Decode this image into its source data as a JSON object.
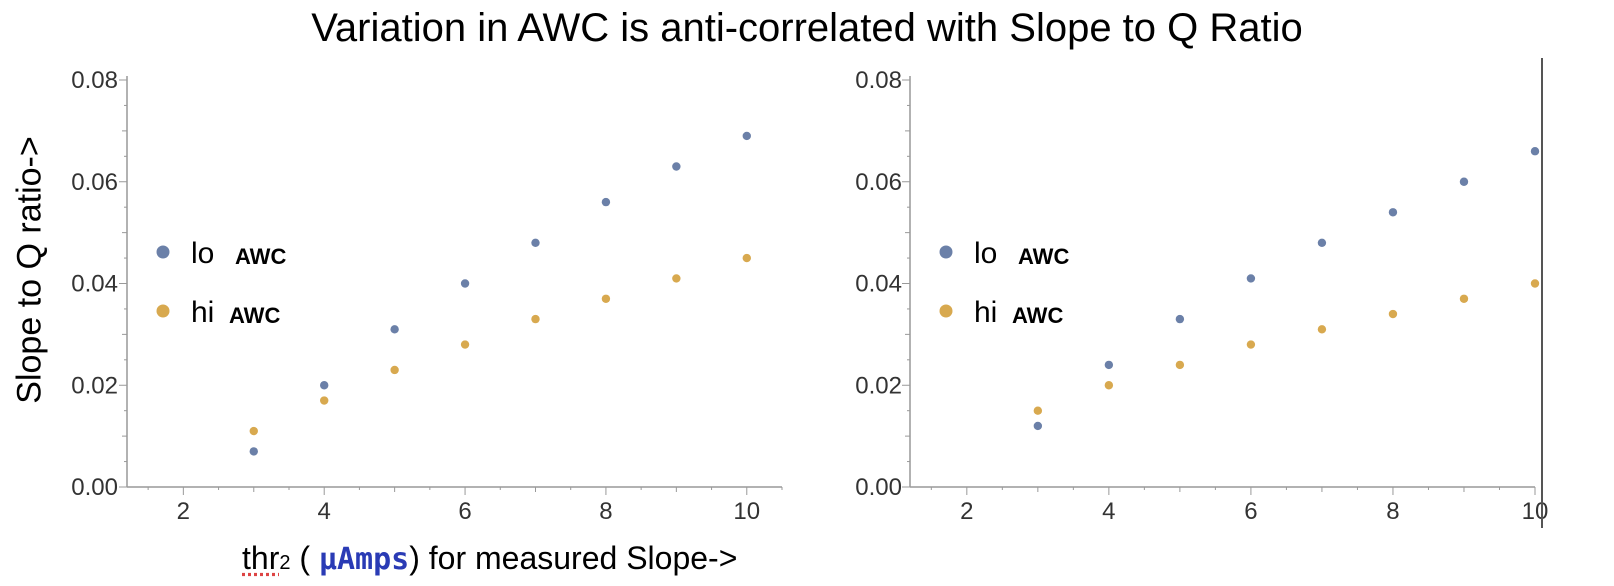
{
  "title": "Variation in AWC is anti-correlated with Slope to Q Ratio",
  "ylabel": "Slope to Q ratio->",
  "xlabel": {
    "prefix": "thr",
    "subscript": "2",
    "open": " ( ",
    "unit": "μAmps",
    "suffix": ") for measured Slope->"
  },
  "colors": {
    "lo": "#6b80a8",
    "hi": "#d8a94f",
    "axis": "#999999"
  },
  "chart_data": [
    {
      "type": "scatter",
      "name": "left-panel",
      "xlim": [
        1.2,
        10.5
      ],
      "ylim": [
        0,
        0.08
      ],
      "x_ticks": [
        2,
        4,
        6,
        8,
        10
      ],
      "x_tick_labels": [
        "2",
        "4",
        "6",
        "8",
        "10"
      ],
      "y_ticks": [
        0,
        0.02,
        0.04,
        0.06,
        0.08
      ],
      "y_tick_labels": [
        "0.00",
        "0.02",
        "0.04",
        "0.06",
        "0.08"
      ],
      "legend": [
        {
          "label": "lo",
          "sub": "AWC",
          "series": "lo"
        },
        {
          "label": "hi",
          "sub": "AWC",
          "series": "hi"
        }
      ],
      "series": [
        {
          "name": "lo AWC",
          "key": "lo",
          "x": [
            3,
            4,
            5,
            6,
            7,
            8,
            9,
            10
          ],
          "values": [
            0.007,
            0.02,
            0.031,
            0.04,
            0.048,
            0.056,
            0.063,
            0.069
          ]
        },
        {
          "name": "hi AWC",
          "key": "hi",
          "x": [
            3,
            4,
            5,
            6,
            7,
            8,
            9,
            10
          ],
          "values": [
            0.011,
            0.017,
            0.023,
            0.028,
            0.033,
            0.037,
            0.041,
            0.045
          ]
        }
      ]
    },
    {
      "type": "scatter",
      "name": "right-panel",
      "xlim": [
        1.2,
        10.0
      ],
      "ylim": [
        0,
        0.08
      ],
      "x_ticks": [
        2,
        4,
        6,
        8,
        10
      ],
      "x_tick_labels": [
        "2",
        "4",
        "6",
        "8",
        "10"
      ],
      "y_ticks": [
        0,
        0.02,
        0.04,
        0.06,
        0.08
      ],
      "y_tick_labels": [
        "0.00",
        "0.02",
        "0.04",
        "0.06",
        "0.08"
      ],
      "legend": [
        {
          "label": "lo",
          "sub": "AWC",
          "series": "lo"
        },
        {
          "label": "hi",
          "sub": "AWC",
          "series": "hi"
        }
      ],
      "series": [
        {
          "name": "lo AWC",
          "key": "lo",
          "x": [
            3,
            4,
            5,
            6,
            7,
            8,
            9,
            10
          ],
          "values": [
            0.012,
            0.024,
            0.033,
            0.041,
            0.048,
            0.054,
            0.06,
            0.066
          ]
        },
        {
          "name": "hi AWC",
          "key": "hi",
          "x": [
            3,
            4,
            5,
            6,
            7,
            8,
            9,
            10
          ],
          "values": [
            0.015,
            0.02,
            0.024,
            0.028,
            0.031,
            0.034,
            0.037,
            0.04
          ]
        }
      ]
    }
  ]
}
